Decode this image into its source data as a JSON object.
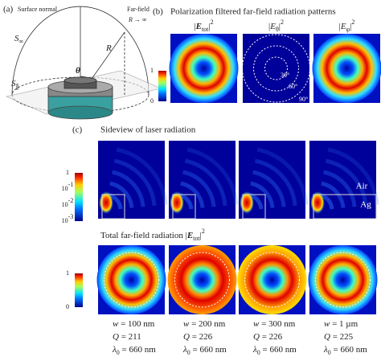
{
  "panel_a": {
    "label": "(a)",
    "surface_normal": "Surface normal",
    "far_field": "Far-field",
    "limit": [
      {
        "text": "R",
        "style": "italic"
      },
      {
        "text": " → ∞",
        "style": "normal"
      }
    ],
    "sphere": [
      {
        "text": "S",
        "style": "italic"
      },
      {
        "text": "∞",
        "style": "sub"
      }
    ],
    "radius": [
      {
        "text": "R",
        "style": "italic"
      }
    ],
    "angle": [
      {
        "text": "θ",
        "style": "bold-italic"
      }
    ],
    "plane": [
      {
        "text": "S",
        "style": "italic"
      },
      {
        "text": "∥",
        "style": "sub"
      }
    ]
  },
  "panel_b": {
    "label": "(b)",
    "title": "Polarization filtered far-field radiation patterns",
    "colorbar": [
      [
        {
          "text": "1",
          "style": "normal"
        }
      ],
      [
        {
          "text": "0",
          "style": "normal"
        }
      ]
    ],
    "columns": [
      [
        {
          "text": "|",
          "style": "normal"
        },
        {
          "text": "E",
          "style": "bold-italic"
        },
        {
          "text": "tot",
          "style": "sub"
        },
        {
          "text": "|",
          "style": "normal"
        },
        {
          "text": "2",
          "style": "sup"
        }
      ],
      [
        {
          "text": "|",
          "style": "normal"
        },
        {
          "text": "E",
          "style": "italic"
        },
        {
          "text": "θ",
          "style": "sub"
        },
        {
          "text": "|",
          "style": "normal"
        },
        {
          "text": "2",
          "style": "sup"
        }
      ],
      [
        {
          "text": "|",
          "style": "normal"
        },
        {
          "text": "E",
          "style": "italic"
        },
        {
          "text": "φ",
          "style": "sub"
        },
        {
          "text": "|",
          "style": "normal"
        },
        {
          "text": "2",
          "style": "sup"
        }
      ]
    ],
    "angles": [
      "30°",
      "60°",
      "90°"
    ]
  },
  "panel_c": {
    "label": "(c)",
    "sideview_title": "Sideview of laser radiation",
    "sideview_colorbar": [
      [
        {
          "text": "1",
          "style": "normal"
        }
      ],
      [
        {
          "text": "10",
          "style": "normal"
        },
        {
          "text": "-1",
          "style": "sup"
        }
      ],
      [
        {
          "text": "10",
          "style": "normal"
        },
        {
          "text": "-2",
          "style": "sup"
        }
      ],
      [
        {
          "text": "10",
          "style": "normal"
        },
        {
          "text": "-3",
          "style": "sup"
        }
      ]
    ],
    "air": "Air",
    "ag": "Ag",
    "far_field_title": [
      {
        "text": "Total far-field radiation |",
        "style": "normal"
      },
      {
        "text": "E",
        "style": "bold-italic"
      },
      {
        "text": "tot",
        "style": "sub"
      },
      {
        "text": "|",
        "style": "normal"
      },
      {
        "text": "2",
        "style": "sup"
      }
    ],
    "far_field_colorbar": [
      [
        {
          "text": "1",
          "style": "normal"
        }
      ],
      [
        {
          "text": "0",
          "style": "normal"
        }
      ]
    ],
    "samples": [
      {
        "w": [
          {
            "text": "w",
            "style": "italic"
          },
          {
            "text": " = 100 nm",
            "style": "normal"
          }
        ],
        "Q": [
          {
            "text": "Q",
            "style": "italic"
          },
          {
            "text": " = 211",
            "style": "normal"
          }
        ],
        "lambda": [
          {
            "text": "λ",
            "style": "italic"
          },
          {
            "text": "0",
            "style": "sub"
          },
          {
            "text": " = 660 nm",
            "style": "normal"
          }
        ]
      },
      {
        "w": [
          {
            "text": "w",
            "style": "italic"
          },
          {
            "text": " = 200 nm",
            "style": "normal"
          }
        ],
        "Q": [
          {
            "text": "Q",
            "style": "italic"
          },
          {
            "text": " = 226",
            "style": "normal"
          }
        ],
        "lambda": [
          {
            "text": "λ",
            "style": "italic"
          },
          {
            "text": "0",
            "style": "sub"
          },
          {
            "text": " = 660 nm",
            "style": "normal"
          }
        ]
      },
      {
        "w": [
          {
            "text": "w",
            "style": "italic"
          },
          {
            "text": " = 300 nm",
            "style": "normal"
          }
        ],
        "Q": [
          {
            "text": "Q",
            "style": "italic"
          },
          {
            "text": " = 226",
            "style": "normal"
          }
        ],
        "lambda": [
          {
            "text": "λ",
            "style": "italic"
          },
          {
            "text": "0",
            "style": "sub"
          },
          {
            "text": " = 660 nm",
            "style": "normal"
          }
        ]
      },
      {
        "w": [
          {
            "text": "w",
            "style": "italic"
          },
          {
            "text": " = 1 µm",
            "style": "normal"
          }
        ],
        "Q": [
          {
            "text": "Q",
            "style": "italic"
          },
          {
            "text": " = 225",
            "style": "normal"
          }
        ],
        "lambda": [
          {
            "text": "λ",
            "style": "italic"
          },
          {
            "text": "0",
            "style": "sub"
          },
          {
            "text": " = 660 nm",
            "style": "normal"
          }
        ]
      }
    ]
  }
}
